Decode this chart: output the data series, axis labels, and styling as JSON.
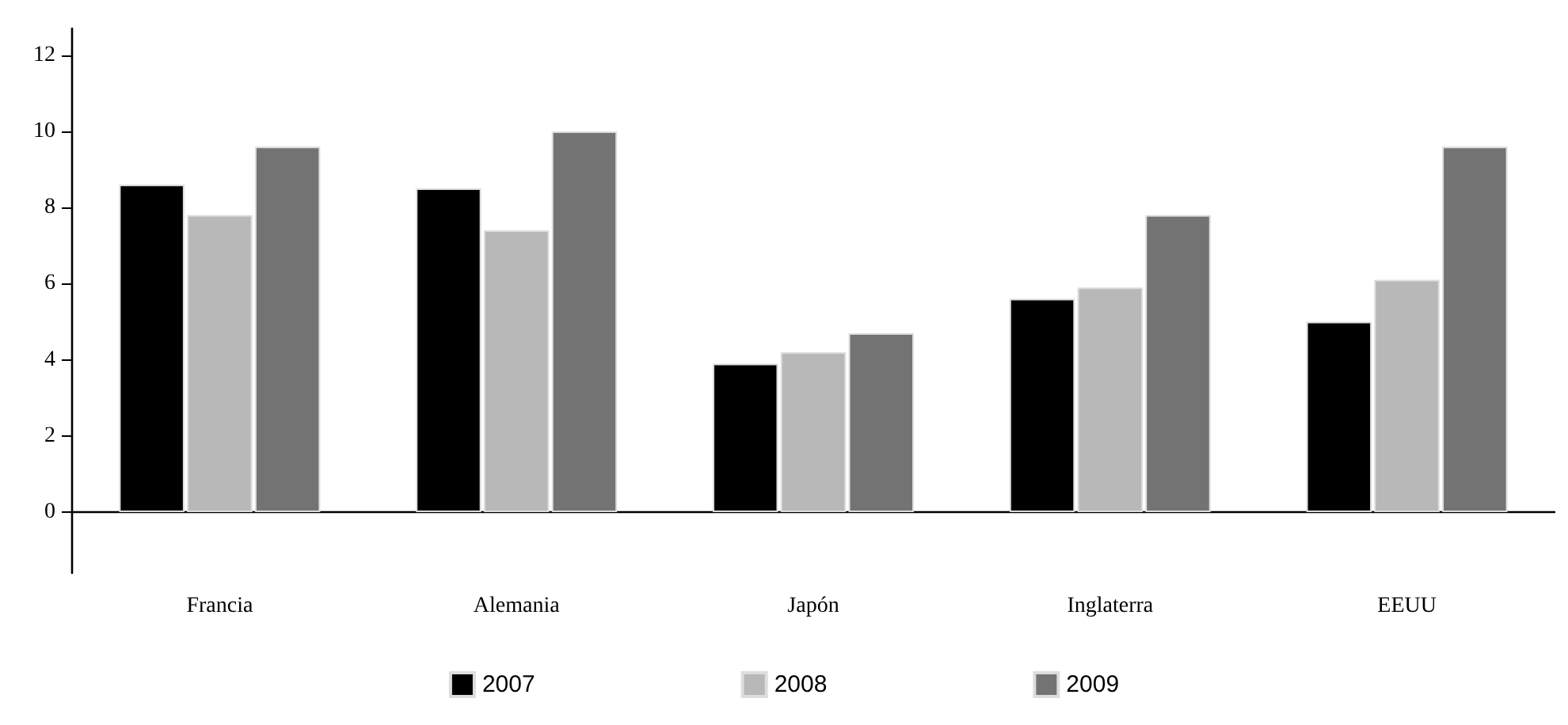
{
  "chart_data": {
    "type": "bar",
    "categories": [
      "Francia",
      "Alemania",
      "Japón",
      "Inglaterra",
      "EEUU"
    ],
    "series": [
      {
        "name": "2007",
        "color": "#000000",
        "values": [
          8.6,
          8.5,
          3.9,
          5.6,
          5.0
        ]
      },
      {
        "name": "2008",
        "color": "#b8b8b8",
        "values": [
          7.8,
          7.4,
          4.2,
          5.9,
          6.1
        ]
      },
      {
        "name": "2009",
        "color": "#737373",
        "values": [
          9.6,
          10.0,
          4.7,
          7.8,
          9.6
        ]
      }
    ],
    "ylim": [
      -1.6,
      12.7
    ],
    "yticks": [
      0,
      2,
      4,
      6,
      8,
      10,
      12
    ],
    "legend": "bottom"
  }
}
